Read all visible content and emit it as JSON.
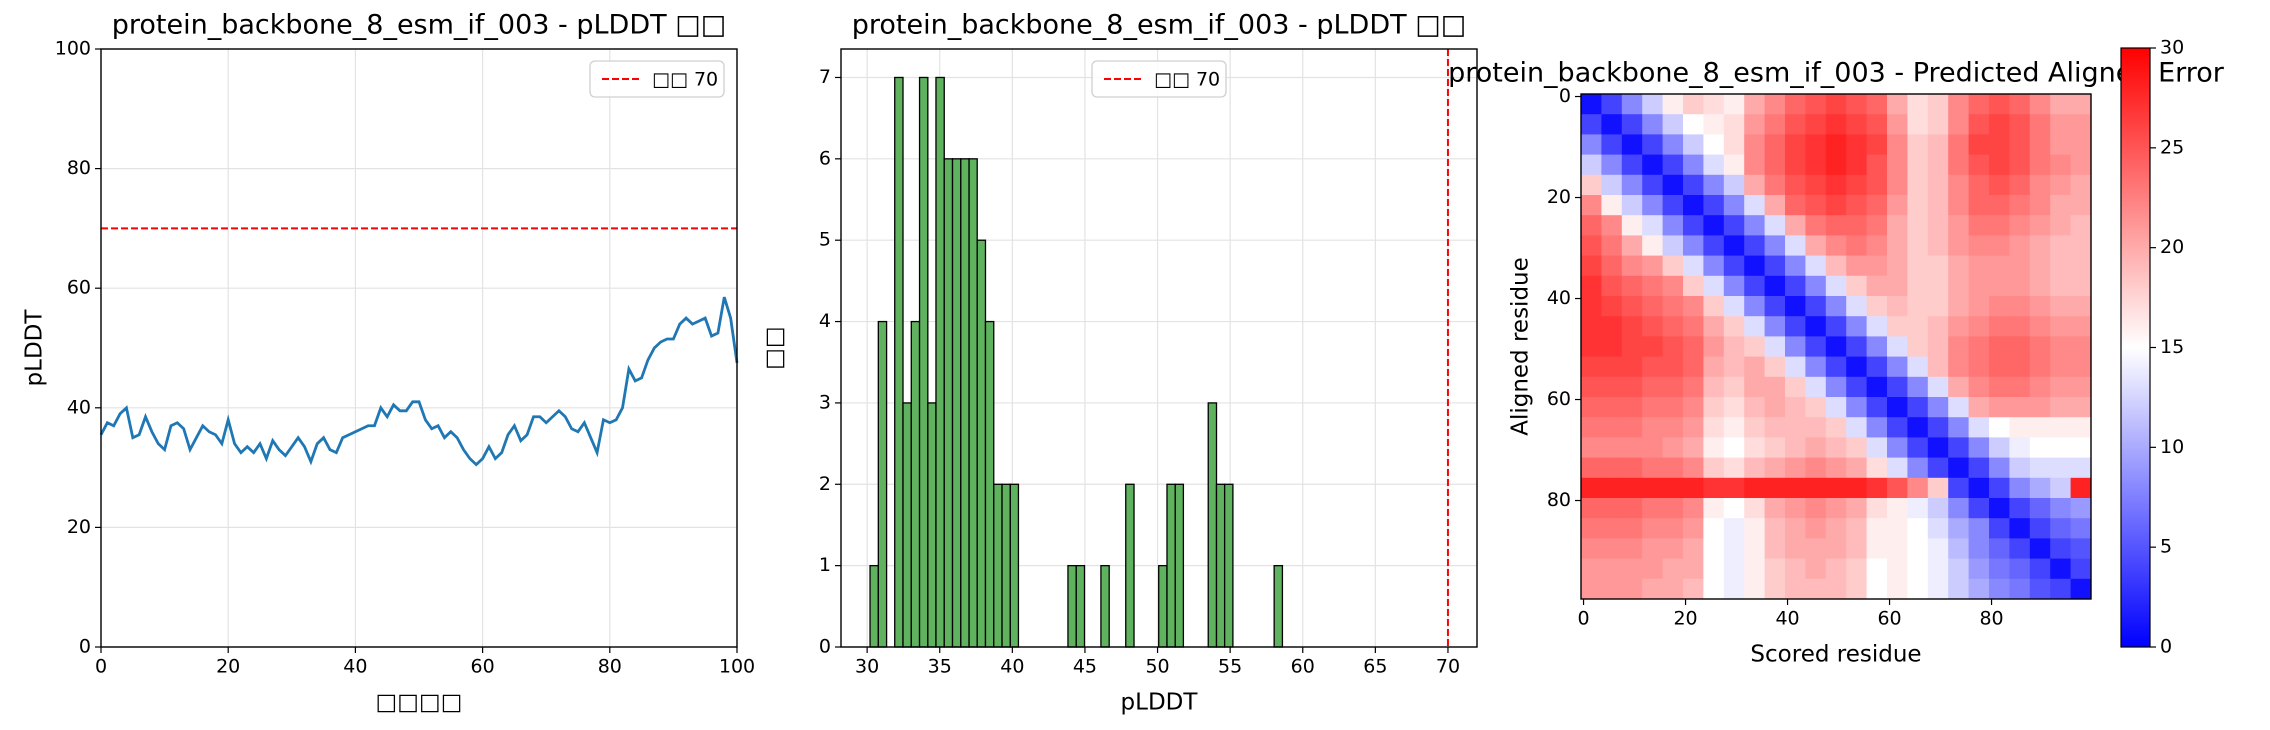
{
  "chart_data": [
    {
      "type": "line",
      "title": "protein_backbone_8_esm_if_003 - pLDDT □□",
      "xlabel": "□□□□",
      "ylabel": "pLDDT",
      "x": [
        0,
        1,
        2,
        3,
        4,
        5,
        6,
        7,
        8,
        9,
        10,
        11,
        12,
        13,
        14,
        15,
        16,
        17,
        18,
        19,
        20,
        21,
        22,
        23,
        24,
        25,
        26,
        27,
        28,
        29,
        30,
        31,
        32,
        33,
        34,
        35,
        36,
        37,
        38,
        39,
        40,
        41,
        42,
        43,
        44,
        45,
        46,
        47,
        48,
        49,
        50,
        51,
        52,
        53,
        54,
        55,
        56,
        57,
        58,
        59,
        60,
        61,
        62,
        63,
        64,
        65,
        66,
        67,
        68,
        69,
        70,
        71,
        72,
        73,
        74,
        75,
        76,
        77,
        78,
        79,
        80,
        81,
        82,
        83,
        84,
        85,
        86,
        87,
        88,
        89,
        90,
        91,
        92,
        93,
        94,
        95,
        96,
        97,
        98,
        99,
        100
      ],
      "values": [
        35.5,
        37.5,
        37,
        39,
        40,
        35,
        35.5,
        38.5,
        36,
        34,
        33,
        37,
        37.5,
        36.5,
        33,
        35,
        37,
        36,
        35.5,
        34,
        38,
        34,
        32.5,
        33.5,
        32.5,
        34,
        31.5,
        34.5,
        33,
        32,
        33.5,
        35,
        33.5,
        31,
        34,
        35,
        33,
        32.5,
        35,
        35.5,
        36,
        36.5,
        37,
        37,
        40,
        38.5,
        40.5,
        39.5,
        39.5,
        41,
        41,
        38,
        36.5,
        37,
        35,
        36,
        35,
        33,
        31.5,
        30.5,
        31.5,
        33.5,
        31.5,
        32.5,
        35.5,
        37,
        34.5,
        35.5,
        38.5,
        38.5,
        37.5,
        38.5,
        39.5,
        38.5,
        36.5,
        36,
        37.5,
        35,
        32.5,
        38,
        37.5,
        38,
        40,
        46.5,
        44.5,
        45,
        48,
        50,
        51,
        51.5,
        51.5,
        54,
        55,
        54,
        54.5,
        55,
        52,
        52.5,
        58.5,
        55,
        47.5
      ],
      "color": "#1f77b4",
      "xlim": [
        0,
        100
      ],
      "ylim": [
        0,
        100
      ],
      "xticks": [
        0,
        20,
        40,
        60,
        80,
        100
      ],
      "yticks": [
        0,
        20,
        40,
        60,
        80,
        100
      ],
      "grid": true,
      "threshold": {
        "value": 70,
        "name": "□□ 70",
        "color": "#ff0000",
        "orientation": "horizontal"
      },
      "legend": "upper right"
    },
    {
      "type": "histogram",
      "title": "protein_backbone_8_esm_if_003 - pLDDT □□",
      "xlabel": "pLDDT",
      "ylabel": "□□",
      "bins": [
        30.2,
        30.77,
        31.34,
        31.9,
        32.47,
        33.04,
        33.61,
        34.18,
        34.74,
        35.31,
        35.88,
        36.45,
        37.02,
        37.58,
        38.15,
        38.72,
        39.29,
        39.86,
        40.42,
        40.99,
        41.56,
        42.13,
        42.7,
        43.26,
        43.83,
        44.4,
        44.97,
        45.54,
        46.1,
        46.67,
        47.24,
        47.81,
        48.38,
        48.94,
        49.51,
        50.08,
        50.65,
        51.22,
        51.78,
        52.35,
        52.92,
        53.49,
        54.06,
        54.62,
        55.19,
        55.76,
        56.33,
        56.9,
        57.46,
        58.03,
        58.6
      ],
      "values": [
        1,
        4,
        0,
        7,
        3,
        4,
        7,
        3,
        7,
        6,
        6,
        6,
        6,
        5,
        4,
        2,
        2,
        2,
        0,
        0,
        0,
        0,
        0,
        0,
        1,
        1,
        0,
        0,
        1,
        0,
        0,
        2,
        0,
        0,
        0,
        1,
        2,
        2,
        0,
        0,
        0,
        3,
        2,
        2,
        0,
        0,
        0,
        0,
        0,
        1
      ],
      "color": "#5fb35f",
      "xlim": [
        28.2,
        72
      ],
      "ylim": [
        0,
        7.35
      ],
      "xticks": [
        30,
        35,
        40,
        45,
        50,
        55,
        60,
        65,
        70
      ],
      "yticks": [
        0,
        1,
        2,
        3,
        4,
        5,
        6,
        7
      ],
      "grid": true,
      "threshold": {
        "value": 70,
        "name": "□□ 70",
        "color": "#ff0000",
        "orientation": "vertical"
      },
      "legend": "upper center"
    },
    {
      "type": "heatmap",
      "title": "protein_backbone_8_esm_if_003 - Predicted Aligned Error",
      "xlabel": "Scored residue",
      "ylabel": "Aligned residue",
      "xlim": [
        -0.5,
        99.5
      ],
      "ylim": [
        99.5,
        -0.5
      ],
      "xticks": [
        0,
        20,
        40,
        60,
        80
      ],
      "yticks": [
        0,
        20,
        40,
        60,
        80
      ],
      "colormap": "bwr",
      "colorbar": {
        "lim": [
          0,
          30
        ],
        "ticks": [
          0,
          5,
          10,
          15,
          20,
          25,
          30
        ]
      },
      "matrix": [
        [
          1,
          4,
          8,
          12,
          16,
          18,
          17,
          16,
          20,
          22,
          24,
          25,
          26,
          25,
          24,
          20,
          17,
          18,
          22,
          24,
          25,
          24,
          22,
          20,
          20
        ],
        [
          4,
          1,
          4,
          8,
          12,
          15,
          16,
          17,
          21,
          23,
          25,
          26,
          27,
          26,
          25,
          21,
          17,
          18,
          22,
          25,
          26,
          25,
          23,
          21,
          21
        ],
        [
          8,
          4,
          1,
          4,
          8,
          12,
          15,
          17,
          22,
          24,
          26,
          27,
          28,
          27,
          26,
          22,
          18,
          19,
          23,
          26,
          26,
          25,
          23,
          21,
          21
        ],
        [
          12,
          8,
          4,
          1,
          4,
          8,
          13,
          16,
          22,
          24,
          26,
          27,
          28,
          27,
          25,
          22,
          18,
          19,
          23,
          25,
          26,
          25,
          23,
          22,
          21
        ],
        [
          18,
          12,
          8,
          4,
          1,
          4,
          8,
          12,
          20,
          23,
          25,
          26,
          27,
          26,
          25,
          22,
          18,
          19,
          22,
          24,
          25,
          24,
          22,
          21,
          20
        ],
        [
          22,
          16,
          12,
          8,
          4,
          1,
          4,
          8,
          13,
          20,
          24,
          25,
          26,
          25,
          24,
          21,
          18,
          19,
          22,
          24,
          24,
          23,
          22,
          20,
          20
        ],
        [
          24,
          22,
          16,
          13,
          8,
          4,
          1,
          4,
          8,
          13,
          20,
          23,
          24,
          24,
          23,
          20,
          18,
          19,
          21,
          23,
          23,
          22,
          21,
          20,
          19
        ],
        [
          25,
          23,
          20,
          16,
          12,
          8,
          4,
          1,
          4,
          8,
          13,
          20,
          22,
          23,
          22,
          20,
          18,
          19,
          21,
          22,
          22,
          21,
          20,
          19,
          19
        ],
        [
          26,
          24,
          22,
          21,
          18,
          13,
          8,
          4,
          1,
          4,
          8,
          13,
          19,
          21,
          21,
          20,
          18,
          18,
          20,
          21,
          21,
          21,
          20,
          19,
          19
        ],
        [
          27,
          25,
          24,
          23,
          22,
          18,
          13,
          8,
          4,
          1,
          4,
          8,
          13,
          18,
          20,
          20,
          18,
          18,
          20,
          21,
          21,
          21,
          20,
          19,
          19
        ],
        [
          27,
          26,
          25,
          24,
          23,
          22,
          18,
          13,
          8,
          4,
          1,
          4,
          8,
          13,
          18,
          19,
          18,
          18,
          20,
          21,
          22,
          22,
          21,
          20,
          20
        ],
        [
          27,
          27,
          26,
          25,
          24,
          23,
          20,
          18,
          13,
          8,
          4,
          1,
          4,
          8,
          13,
          18,
          18,
          19,
          21,
          22,
          23,
          23,
          22,
          21,
          21
        ],
        [
          27,
          27,
          26,
          26,
          25,
          24,
          21,
          19,
          18,
          13,
          8,
          4,
          1,
          4,
          8,
          13,
          18,
          19,
          22,
          23,
          24,
          24,
          23,
          22,
          22
        ],
        [
          26,
          26,
          26,
          25,
          25,
          24,
          20,
          19,
          20,
          18,
          13,
          8,
          4,
          1,
          4,
          8,
          13,
          19,
          22,
          23,
          24,
          24,
          23,
          22,
          22
        ],
        [
          25,
          25,
          25,
          24,
          24,
          23,
          19,
          18,
          20,
          20,
          18,
          13,
          8,
          4,
          1,
          4,
          8,
          13,
          20,
          22,
          23,
          23,
          22,
          21,
          21
        ],
        [
          24,
          24,
          24,
          23,
          23,
          22,
          18,
          17,
          19,
          20,
          19,
          18,
          13,
          8,
          4,
          1,
          4,
          8,
          13,
          20,
          21,
          21,
          21,
          20,
          20
        ],
        [
          23,
          23,
          23,
          22,
          22,
          21,
          17,
          16,
          18,
          19,
          19,
          19,
          18,
          13,
          8,
          4,
          1,
          4,
          8,
          13,
          15,
          16,
          16,
          16,
          16
        ],
        [
          22,
          22,
          22,
          22,
          21,
          20,
          16,
          15,
          17,
          18,
          19,
          20,
          19,
          18,
          13,
          8,
          4,
          1,
          4,
          8,
          12,
          14,
          15,
          15,
          15
        ],
        [
          24,
          24,
          24,
          23,
          23,
          22,
          18,
          17,
          19,
          20,
          21,
          22,
          21,
          20,
          17,
          13,
          8,
          4,
          1,
          4,
          8,
          12,
          13,
          13,
          13
        ],
        [
          28,
          28,
          28,
          28,
          28,
          28,
          27,
          27,
          28,
          28,
          28,
          28,
          28,
          28,
          27,
          25,
          22,
          18,
          4,
          1,
          4,
          8,
          10,
          12,
          28
        ],
        [
          24,
          24,
          24,
          23,
          23,
          22,
          16,
          15,
          17,
          20,
          21,
          22,
          21,
          20,
          17,
          16,
          14,
          12,
          8,
          4,
          1,
          4,
          6,
          8,
          9
        ],
        [
          23,
          23,
          23,
          22,
          22,
          21,
          15,
          14,
          16,
          19,
          20,
          21,
          20,
          19,
          16,
          16,
          15,
          13,
          10,
          8,
          4,
          1,
          4,
          6,
          7
        ],
        [
          22,
          22,
          22,
          21,
          21,
          20,
          15,
          14,
          16,
          19,
          20,
          20,
          20,
          19,
          16,
          16,
          15,
          14,
          11,
          8,
          6,
          4,
          1,
          4,
          5
        ],
        [
          21,
          21,
          21,
          21,
          20,
          20,
          15,
          14,
          16,
          18,
          19,
          20,
          19,
          18,
          15,
          16,
          15,
          14,
          12,
          9,
          7,
          6,
          4,
          1,
          4
        ],
        [
          21,
          21,
          21,
          20,
          20,
          19,
          15,
          14,
          16,
          18,
          19,
          19,
          19,
          18,
          15,
          16,
          15,
          14,
          12,
          10,
          8,
          7,
          5,
          4,
          1
        ]
      ]
    }
  ]
}
